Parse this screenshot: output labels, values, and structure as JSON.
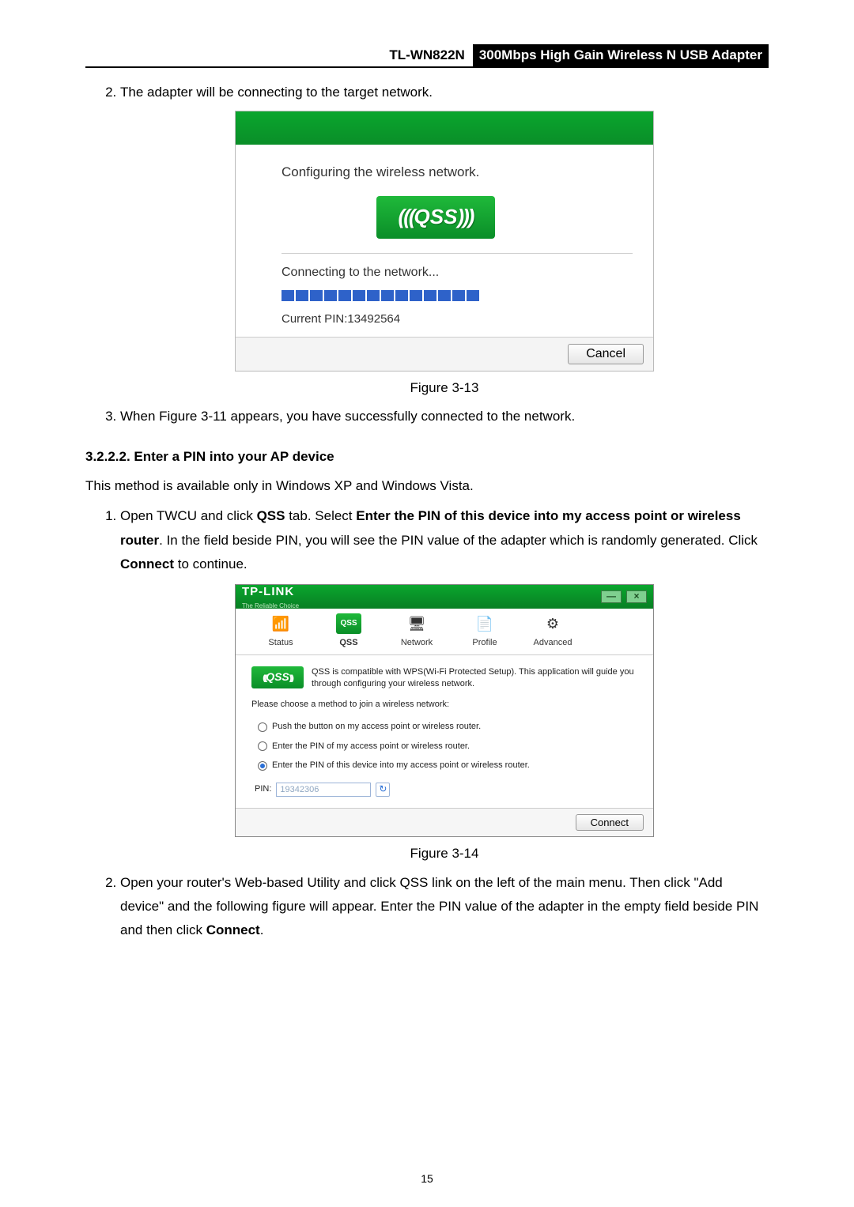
{
  "header": {
    "model": "TL-WN822N",
    "desc": "300Mbps High Gain Wireless N USB Adapter"
  },
  "colors": {
    "green_top": "#0aa62e",
    "green_bottom": "#087f23",
    "blue_progress": "#2e62c9",
    "button_border": "#999999",
    "text": "#000000"
  },
  "step2": "The adapter will be connecting to the target network.",
  "fig313": {
    "caption": "Figure 3-13",
    "title": "Configuring the wireless network.",
    "qss_label": "QSS",
    "subtitle": "Connecting to the network...",
    "progress": {
      "total": 14,
      "filled": 14
    },
    "pin_label": "Current PIN:13492564",
    "cancel": "Cancel"
  },
  "step3": "When Figure 3-11 appears, you have successfully connected to the network.",
  "section_heading": "3.2.2.2.  Enter a PIN into your AP device",
  "section_intro": "This method is available only in Windows XP and Windows Vista.",
  "step1b_pre": "Open TWCU and click ",
  "step1b_b1": "QSS",
  "step1b_mid1": " tab. Select ",
  "step1b_b2": "Enter the PIN of this device into my access point or wireless router",
  "step1b_mid2": ". In the field beside PIN, you will see the PIN value of the adapter which is randomly generated. Click ",
  "step1b_b3": "Connect",
  "step1b_post": " to continue.",
  "fig314": {
    "caption": "Figure 3-14",
    "brand": "TP-LINK",
    "brand_sub": "The Reliable Choice",
    "tabs": {
      "status": "Status",
      "qss": "QSS",
      "network": "Network",
      "profile": "Profile",
      "advanced": "Advanced"
    },
    "qss_small": "QSS",
    "qss_desc": "QSS is compatible with WPS(Wi-Fi Protected Setup). This application will guide you through configuring your wireless network.",
    "choose_label": "Please choose a method to join a wireless network:",
    "opt1": "Push the button on my access point or wireless router.",
    "opt2": "Enter the PIN of my access point or wireless router.",
    "opt3": "Enter the PIN of this device into my access point or wireless router.",
    "pin_label": "PIN:",
    "pin_value": "19342306",
    "connect": "Connect"
  },
  "step2b_pre": "Open your router's Web-based Utility and click QSS link on the left of the main menu. Then click \"Add device\" and the following figure will appear. Enter the PIN value of the adapter in the empty field beside PIN and then click ",
  "step2b_b1": "Connect",
  "step2b_post": ".",
  "page_number": "15"
}
